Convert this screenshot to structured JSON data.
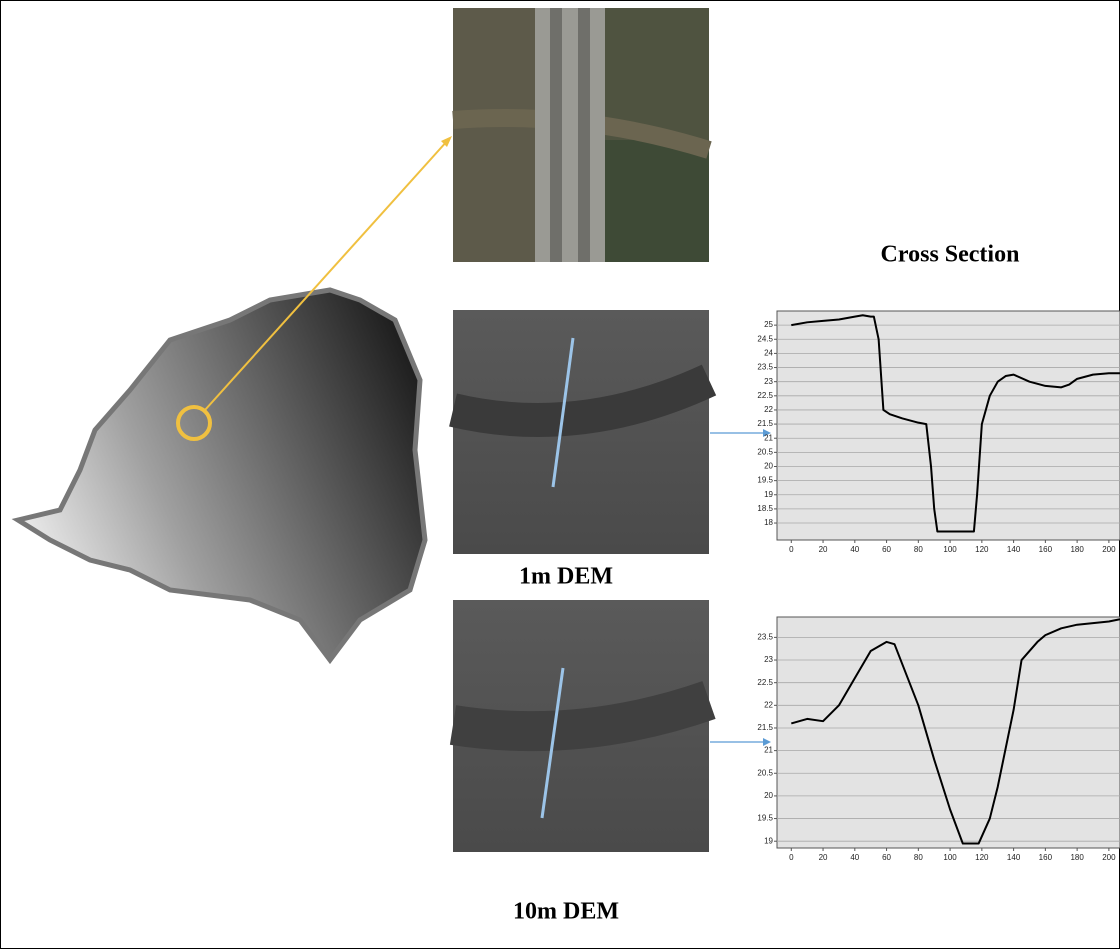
{
  "labels": {
    "dem_1m": "1m DEM",
    "dem_10m": "10m DEM"
  },
  "chart_data": [
    {
      "type": "line",
      "title": "Cross Section",
      "color": "#000000",
      "grid": true,
      "x": [
        0,
        10,
        20,
        30,
        40,
        45,
        50,
        52,
        55,
        58,
        62,
        70,
        80,
        85,
        88,
        90,
        92,
        100,
        115,
        117,
        120,
        125,
        130,
        135,
        140,
        150,
        160,
        170,
        175,
        180,
        190,
        200,
        207
      ],
      "values": [
        25.0,
        25.1,
        25.15,
        25.2,
        25.3,
        25.35,
        25.3,
        25.3,
        24.5,
        22.0,
        21.85,
        21.7,
        21.55,
        21.5,
        20.0,
        18.5,
        17.7,
        17.7,
        17.7,
        19.0,
        21.5,
        22.5,
        23.0,
        23.2,
        23.25,
        23.0,
        22.85,
        22.8,
        22.9,
        23.1,
        23.25,
        23.3,
        23.3
      ],
      "xlim": [
        -9,
        207
      ],
      "ylim": [
        17.4,
        25.5
      ],
      "xticks": [
        0,
        20,
        40,
        60,
        80,
        100,
        120,
        140,
        160,
        180,
        200
      ],
      "yticks": [
        18,
        18.5,
        19,
        19.5,
        20,
        20.5,
        21,
        21.5,
        22,
        22.5,
        23,
        23.5,
        24,
        24.5,
        25
      ]
    },
    {
      "type": "line",
      "color": "#000000",
      "grid": true,
      "x": [
        0,
        10,
        20,
        30,
        40,
        50,
        60,
        65,
        70,
        80,
        90,
        100,
        108,
        118,
        125,
        130,
        140,
        145,
        155,
        160,
        170,
        180,
        200,
        207
      ],
      "values": [
        21.6,
        21.7,
        21.65,
        22.0,
        22.6,
        23.2,
        23.4,
        23.35,
        22.9,
        22.0,
        20.8,
        19.7,
        18.95,
        18.95,
        19.5,
        20.2,
        21.9,
        23.0,
        23.4,
        23.55,
        23.7,
        23.78,
        23.85,
        23.9
      ],
      "xlim": [
        -9,
        207
      ],
      "ylim": [
        18.85,
        23.95
      ],
      "xticks": [
        0,
        20,
        40,
        60,
        80,
        100,
        120,
        140,
        160,
        180,
        200
      ],
      "yticks": [
        19,
        19.5,
        20,
        20.5,
        21,
        21.5,
        22,
        22.5,
        23,
        23.5
      ]
    }
  ]
}
